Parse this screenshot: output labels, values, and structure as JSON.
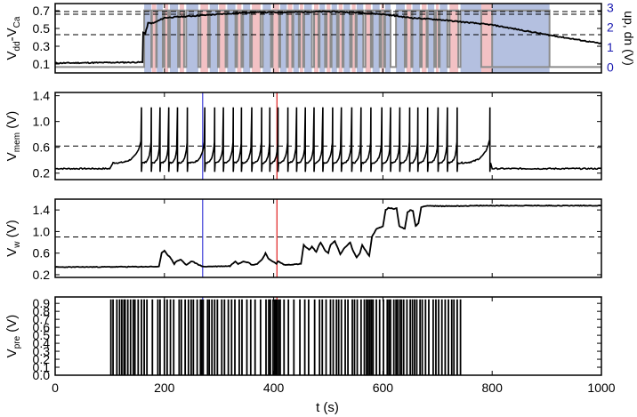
{
  "colors": {
    "trace": "#000000",
    "up_band": "#b4c0e0",
    "dn_band": "#f3c1c4",
    "gray_trace": "#8c8c8c",
    "marker_blue": "#3b3bd6",
    "marker_red": "#e01e1e",
    "right_axis": "#1a1ab0"
  },
  "figure": {
    "xlabel": "t (s)",
    "xticks": [
      "0",
      "200",
      "400",
      "600",
      "800",
      "1000"
    ],
    "xlim": [
      0,
      1000
    ]
  },
  "chart_data": [
    {
      "id": "p1",
      "type": "line",
      "ylabel_main": "V",
      "ylabel_sub": "dd",
      "ylabel_mid": "-V",
      "ylabel_sub2": "Ca",
      "ylim": [
        0.0,
        0.78
      ],
      "yticks": [
        "0.1",
        "0.3",
        "0.5",
        "0.7"
      ],
      "ytick_values": [
        0.1,
        0.3,
        0.5,
        0.7
      ],
      "right_ylabel": "up, dn (V)",
      "right_ylim": [
        -0.3,
        3.2
      ],
      "right_yticks": [
        "0",
        "1",
        "2",
        "3"
      ],
      "right_ytick_values": [
        0,
        1,
        2,
        3
      ],
      "thresholds": [
        0.43,
        0.66,
        0.69
      ],
      "series": [
        {
          "x": [
            0,
            160,
            161,
            165,
            170,
            180,
            200,
            250,
            300,
            350,
            400,
            500,
            550,
            600,
            650,
            700,
            800,
            900,
            1000
          ],
          "y": [
            0.11,
            0.12,
            0.46,
            0.44,
            0.56,
            0.56,
            0.62,
            0.64,
            0.66,
            0.68,
            0.68,
            0.69,
            0.68,
            0.66,
            0.62,
            0.6,
            0.54,
            0.43,
            0.33
          ]
        }
      ],
      "up_bands": [
        [
          163,
          176
        ],
        [
          186,
          197
        ],
        [
          210,
          225
        ],
        [
          240,
          262
        ],
        [
          283,
          298
        ],
        [
          315,
          330
        ],
        [
          344,
          357
        ],
        [
          380,
          395
        ],
        [
          412,
          424
        ],
        [
          436,
          446
        ],
        [
          456,
          470
        ],
        [
          484,
          494
        ],
        [
          506,
          516
        ],
        [
          528,
          540
        ],
        [
          552,
          564
        ],
        [
          581,
          594
        ],
        [
          604,
          614
        ],
        [
          624,
          640
        ],
        [
          654,
          668
        ],
        [
          682,
          694
        ],
        [
          704,
          718
        ],
        [
          742,
          905
        ]
      ],
      "dn_bands": [
        [
          177,
          185
        ],
        [
          200,
          207
        ],
        [
          228,
          236
        ],
        [
          266,
          280
        ],
        [
          300,
          312
        ],
        [
          333,
          341
        ],
        [
          360,
          376
        ],
        [
          398,
          410
        ],
        [
          426,
          434
        ],
        [
          448,
          454
        ],
        [
          474,
          482
        ],
        [
          497,
          504
        ],
        [
          519,
          526
        ],
        [
          543,
          550
        ],
        [
          568,
          578
        ],
        [
          597,
          602
        ],
        [
          643,
          652
        ],
        [
          671,
          680
        ],
        [
          697,
          702
        ],
        [
          722,
          738
        ],
        [
          780,
          800
        ]
      ]
    },
    {
      "id": "p2",
      "type": "line",
      "ylabel_main": "V",
      "ylabel_sub": "mem",
      "ylabel_unit": " (V)",
      "ylim": [
        0.1,
        1.45
      ],
      "yticks": [
        "0.2",
        "0.6",
        "1.0",
        "1.4"
      ],
      "ytick_values": [
        0.2,
        0.6,
        1.0,
        1.4
      ],
      "thresholds": [
        0.62
      ],
      "markers": {
        "blue": 270,
        "red": 406
      },
      "baseline": 0.27,
      "raised": 0.36,
      "rise_time": 100,
      "spike_times": [
        158,
        176,
        192,
        208,
        224,
        242,
        274,
        292,
        308,
        326,
        341,
        360,
        378,
        393,
        408,
        426,
        442,
        458,
        474,
        490,
        508,
        524,
        543,
        560,
        578,
        598,
        614,
        631,
        649,
        664,
        682,
        701,
        718,
        736,
        796
      ],
      "end_time": 800
    },
    {
      "id": "p3",
      "type": "line",
      "ylabel_main": "V",
      "ylabel_sub": "w",
      "ylabel_unit": " (V)",
      "ylim": [
        0.15,
        1.6
      ],
      "yticks": [
        "0.2",
        "0.6",
        "1.0",
        "1.4"
      ],
      "ytick_values": [
        0.2,
        0.6,
        1.0,
        1.4
      ],
      "thresholds": [
        0.9
      ],
      "markers": {
        "blue": 270,
        "red": 406
      },
      "series": [
        {
          "x": [
            0,
            190,
            195,
            200,
            205,
            212,
            218,
            222,
            230,
            240,
            250,
            260,
            270,
            320,
            330,
            335,
            345,
            355,
            360,
            370,
            380,
            385,
            390,
            398,
            405,
            408,
            420,
            450,
            455,
            460,
            465,
            470,
            478,
            482,
            486,
            494,
            500,
            504,
            512,
            518,
            522,
            530,
            540,
            545,
            552,
            558,
            562,
            570,
            575,
            580,
            588,
            600,
            605,
            610,
            620,
            625,
            630,
            640,
            645,
            650,
            655,
            660,
            665,
            670,
            680,
            700,
            800,
            900,
            1000
          ],
          "y": [
            0.34,
            0.35,
            0.6,
            0.65,
            0.58,
            0.5,
            0.4,
            0.45,
            0.48,
            0.38,
            0.45,
            0.4,
            0.35,
            0.36,
            0.45,
            0.4,
            0.45,
            0.42,
            0.38,
            0.4,
            0.5,
            0.6,
            0.5,
            0.45,
            0.4,
            0.45,
            0.38,
            0.4,
            0.75,
            0.7,
            0.66,
            0.72,
            0.62,
            0.72,
            0.8,
            0.65,
            0.6,
            0.75,
            0.82,
            0.68,
            0.58,
            0.7,
            0.8,
            0.65,
            0.52,
            0.6,
            0.75,
            0.62,
            0.55,
            0.9,
            1.05,
            1.1,
            1.4,
            1.44,
            1.42,
            1.43,
            1.1,
            1.05,
            1.35,
            1.4,
            1.38,
            1.1,
            1.15,
            1.45,
            1.48,
            1.47,
            1.48,
            1.48,
            1.48
          ]
        }
      ]
    },
    {
      "id": "p4",
      "type": "line",
      "ylabel_main": "V",
      "ylabel_sub": "pre",
      "ylabel_unit": " (V)",
      "ylim": [
        0.0,
        0.98
      ],
      "yticks": [
        "0.0",
        "0.1",
        "0.2",
        "0.3",
        "0.4",
        "0.5",
        "0.6",
        "0.7",
        "0.8",
        "0.9"
      ],
      "ytick_values": [
        0.0,
        0.1,
        0.2,
        0.3,
        0.4,
        0.5,
        0.6,
        0.7,
        0.8,
        0.9
      ],
      "markers": {
        "blue": 270,
        "red": 406
      },
      "pulse_height": 0.95,
      "pulse_times": [
        102,
        106,
        113,
        118,
        122,
        126,
        128,
        133,
        138,
        143,
        146,
        152,
        158,
        163,
        168,
        178,
        188,
        192,
        200,
        205,
        211,
        217,
        227,
        231,
        238,
        244,
        249,
        253,
        260,
        266,
        268,
        271,
        279,
        282,
        287,
        292,
        297,
        305,
        310,
        317,
        323,
        329,
        337,
        342,
        351,
        358,
        366,
        376,
        386,
        391,
        394,
        399,
        402,
        404,
        406,
        409,
        412,
        419,
        427,
        437,
        448,
        457,
        464,
        475,
        484,
        489,
        496,
        504,
        509,
        515,
        519,
        524,
        531,
        536,
        544,
        548,
        553,
        560,
        566,
        570,
        573,
        576,
        579,
        582,
        588,
        594,
        601,
        608,
        611,
        614,
        620,
        624,
        627,
        631,
        634,
        638,
        644,
        650,
        654,
        658,
        662,
        668,
        672,
        678,
        684,
        692,
        697,
        702,
        708,
        714,
        720,
        726,
        730,
        736,
        742
      ]
    }
  ]
}
